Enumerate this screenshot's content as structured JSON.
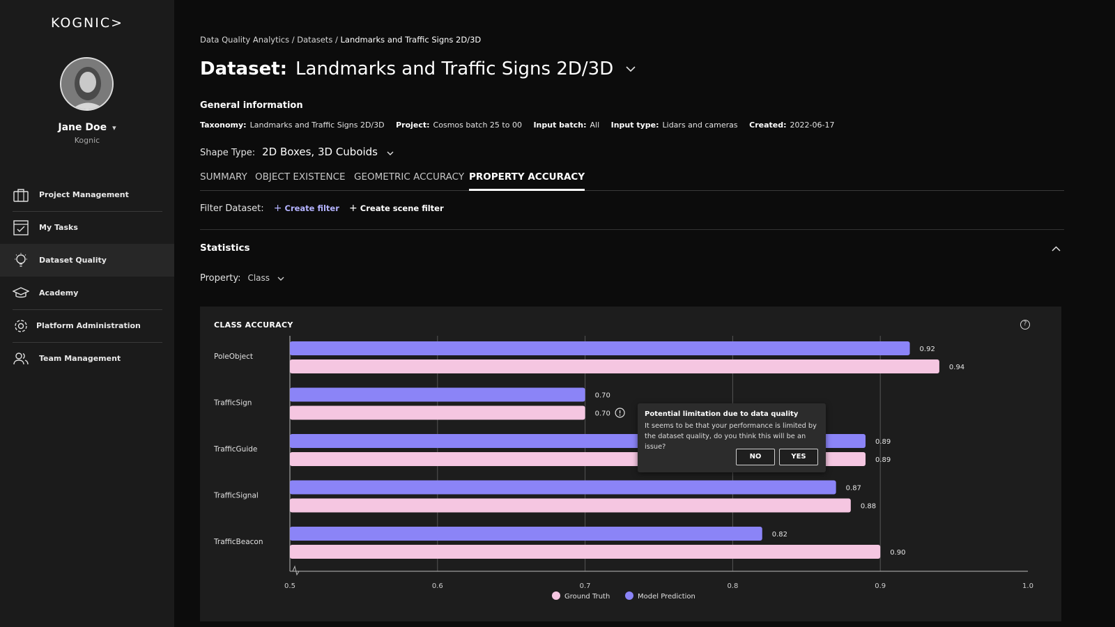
{
  "app": {
    "logo_text": "KOGNIC>"
  },
  "user": {
    "name": "Jane Doe",
    "org": "Kognic",
    "chevron": "⌄"
  },
  "sidebar": {
    "items": [
      {
        "label": "Project Management",
        "icon": "briefcase-icon"
      },
      {
        "label": "My Tasks",
        "icon": "task-check-icon"
      },
      {
        "label": "Dataset Quality",
        "icon": "lightbulb-icon",
        "active": true
      },
      {
        "label": "Academy",
        "icon": "graduation-cap-icon"
      },
      {
        "label": "Platform Administration",
        "icon": "gear-icon"
      },
      {
        "label": "Team Management",
        "icon": "team-icon"
      }
    ]
  },
  "breadcrumb": {
    "part1": "Data Quality Analytics",
    "sep": "/",
    "part2": "Datasets",
    "current": "Landmarks and Traffic Signs 2D/3D"
  },
  "page": {
    "title_prefix": "Dataset:",
    "title": "Landmarks and Traffic Signs 2D/3D"
  },
  "general_info": {
    "heading": "General information",
    "fields": [
      {
        "label": "Taxonomy:",
        "value": "Landmarks and Traffic Signs 2D/3D"
      },
      {
        "label": "Project:",
        "value": "Cosmos batch 25 to 00"
      },
      {
        "label": "Input batch:",
        "value": "All"
      },
      {
        "label": "Input type:",
        "value": "Lidars and cameras"
      },
      {
        "label": "Created:",
        "value": "2022-06-17"
      }
    ]
  },
  "shape_type": {
    "label": "Shape Type:",
    "value": "2D Boxes, 3D Cuboids"
  },
  "tabs": [
    {
      "label": "SUMMARY"
    },
    {
      "label": "OBJECT EXISTENCE"
    },
    {
      "label": "GEOMETRIC ACCURACY"
    },
    {
      "label": "PROPERTY ACCURACY",
      "active": true
    }
  ],
  "filter": {
    "label": "Filter Dataset:",
    "create_filter": "Create filter",
    "create_scene_filter": "Create scene filter",
    "plus": "+"
  },
  "statistics": {
    "heading": "Statistics"
  },
  "property": {
    "label": "Property:",
    "value": "Class"
  },
  "card": {
    "title": "CLASS ACCURACY",
    "help": "?"
  },
  "tooltip": {
    "title": "Potential limitation due to data quality",
    "body": "It seems to be that your performance is limited by the dataset quality, do you think this will be an issue?",
    "no": "NO",
    "yes": "YES"
  },
  "colors": {
    "model_prediction": "#8b84f7",
    "ground_truth": "#f5c6e1",
    "background": "#0c0c0c",
    "sidebar": "#1b1b1b"
  },
  "chart_data": {
    "type": "bar",
    "orientation": "horizontal",
    "title": "CLASS ACCURACY",
    "categories": [
      "PoleObject",
      "TrafficSign",
      "TrafficGuide",
      "TrafficSignal",
      "TrafficBeacon"
    ],
    "series": [
      {
        "name": "Model Prediction",
        "color": "#8b84f7",
        "values": [
          0.92,
          0.7,
          0.89,
          0.87,
          0.82
        ],
        "labels": [
          "0.92",
          "0.70",
          "0.89",
          "0.87",
          "0.82"
        ]
      },
      {
        "name": "Ground Truth",
        "color": "#f5c6e1",
        "values": [
          0.94,
          0.7,
          0.89,
          0.88,
          0.9
        ],
        "labels": [
          "0.94",
          "0.70",
          "0.89",
          "0.88",
          "0.90"
        ]
      }
    ],
    "xlim": [
      0.5,
      1.0
    ],
    "xticks": [
      "0.5",
      "0.6",
      "0.7",
      "0.8",
      "0.9",
      "1.0"
    ],
    "grid": true,
    "axis_break": true,
    "legend": [
      "Ground Truth",
      "Model Prediction"
    ],
    "legend_position": "bottom-center",
    "warning_marker_category": "TrafficSign"
  }
}
